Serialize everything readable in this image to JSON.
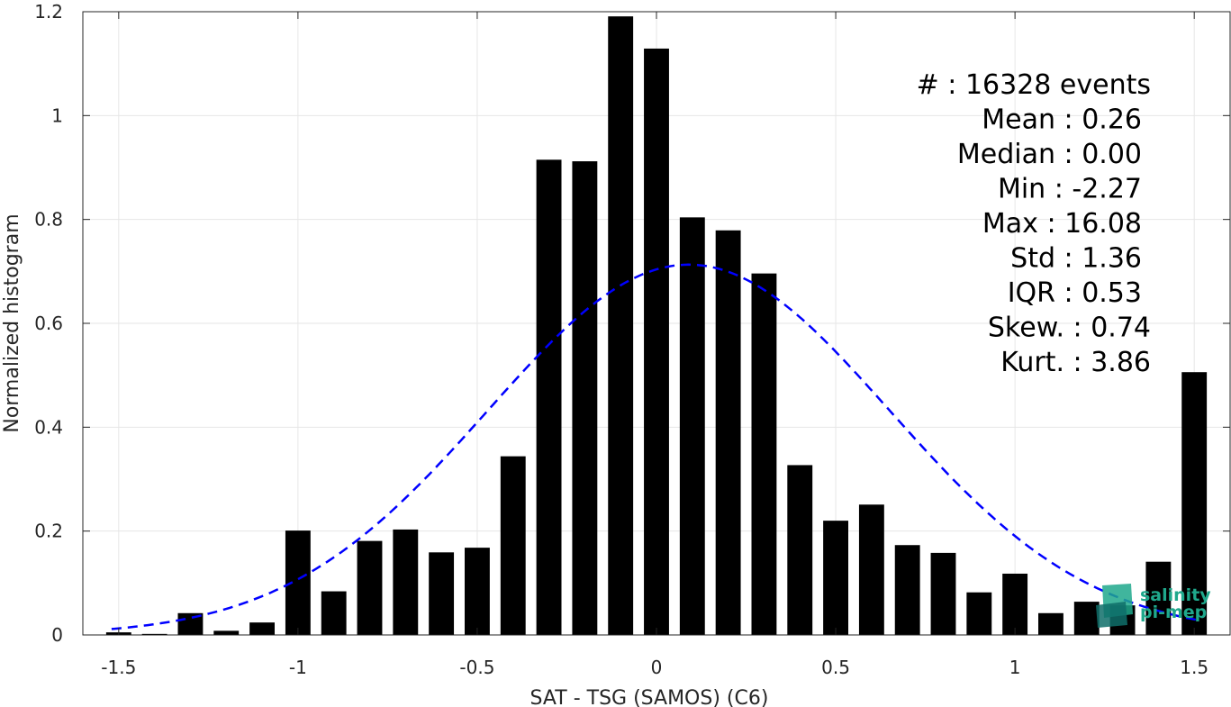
{
  "chart_data": {
    "type": "bar",
    "xlabel": "SAT - TSG (SAMOS) (C6)",
    "ylabel": "Normalized histogram",
    "xlim": [
      -1.6,
      1.6
    ],
    "ylim": [
      0,
      1.2
    ],
    "xticks": [
      -1.5,
      -1,
      -0.5,
      0,
      0.5,
      1,
      1.5
    ],
    "xtick_labels": [
      "-1.5",
      "-1",
      "-0.5",
      "0",
      "0.5",
      "1",
      "1.5"
    ],
    "yticks": [
      0,
      0.2,
      0.4,
      0.6,
      0.8,
      1,
      1.2
    ],
    "ytick_labels": [
      "0",
      "0.2",
      "0.4",
      "0.6",
      "0.8",
      "1",
      "1.2"
    ],
    "grid": true,
    "bar_width": 0.07,
    "series": [
      {
        "type": "bar",
        "x": [
          -1.5,
          -1.4,
          -1.3,
          -1.2,
          -1.1,
          -1.0,
          -0.9,
          -0.8,
          -0.7,
          -0.6,
          -0.5,
          -0.4,
          -0.3,
          -0.2,
          -0.1,
          0.0,
          0.1,
          0.2,
          0.3,
          0.4,
          0.5,
          0.6,
          0.7,
          0.8,
          0.9,
          1.0,
          1.1,
          1.2,
          1.3,
          1.4,
          1.5
        ],
        "values": [
          0.005,
          0.002,
          0.042,
          0.008,
          0.024,
          0.201,
          0.084,
          0.181,
          0.203,
          0.159,
          0.168,
          0.344,
          0.915,
          0.912,
          1.191,
          1.129,
          0.804,
          0.779,
          0.696,
          0.327,
          0.22,
          0.251,
          0.173,
          0.158,
          0.082,
          0.118,
          0.042,
          0.064,
          0.057,
          0.141,
          0.506
        ],
        "color": "#000000"
      },
      {
        "type": "line",
        "style": "dashed",
        "color": "#0000ff",
        "mean": 0.09,
        "std": 0.56,
        "peak": 0.713,
        "x_range": [
          -1.52,
          1.52
        ]
      }
    ],
    "annotations": [
      "#  : 16328 events",
      "Mean : 0.26",
      "Median : 0.00",
      "Min : -2.27",
      "Max : 16.08",
      "Std : 1.36",
      "IQR : 0.53",
      "Skew. : 0.74",
      "Kurt. : 3.86"
    ]
  },
  "logo": {
    "line1": "salinity",
    "line2": "pi-mep",
    "color": "#1fa88c"
  }
}
